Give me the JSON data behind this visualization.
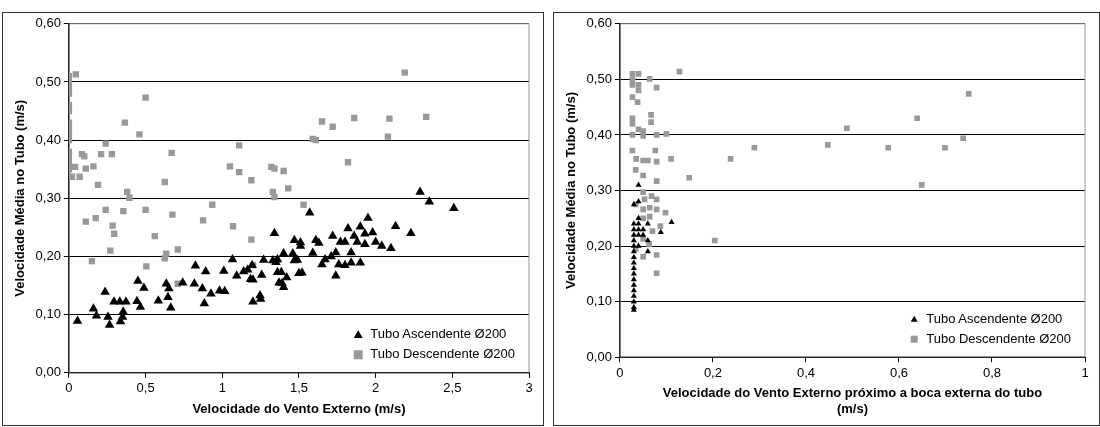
{
  "chart_data": [
    {
      "type": "scatter",
      "xlabel": "Velocidade do Vento Externo (m/s)",
      "ylabel": "Velocidade Média no Tubo (m/s)",
      "xlim": [
        0,
        3
      ],
      "xticks": [
        0,
        {
          "value": 0.5,
          "label": "0,5"
        },
        1,
        {
          "value": 1.5,
          "label": "1,5"
        },
        2,
        {
          "value": 2.5,
          "label": "2,5"
        },
        3
      ],
      "ylim": [
        0,
        0.6
      ],
      "yticks": [
        {
          "value": 0,
          "label": "0,00"
        },
        {
          "value": 0.1,
          "label": "0,10"
        },
        {
          "value": 0.2,
          "label": "0,20"
        },
        {
          "value": 0.3,
          "label": "0,30"
        },
        {
          "value": 0.4,
          "label": "0,40"
        },
        {
          "value": 0.5,
          "label": "0,50"
        },
        {
          "value": 0.6,
          "label": "0,60"
        }
      ],
      "grid": "y",
      "legend": "bottom right",
      "series": [
        {
          "name": "Tubo Ascendente Ø200",
          "color": "#000000",
          "marker": "triangle",
          "x": [
            0.056,
            0.16,
            0.18,
            0.236,
            0.255,
            0.265,
            0.294,
            0.336,
            0.332,
            0.354,
            0.35,
            0.372,
            0.444,
            0.466,
            0.45,
            0.489,
            0.583,
            0.635,
            0.652,
            0.646,
            0.664,
            0.742,
            0.825,
            0.818,
            0.87,
            0.892,
            0.883,
            0.926,
            0.982,
            1.016,
            1.01,
            1.067,
            1.094,
            1.139,
            1.166,
            1.195,
            1.184,
            1.2,
            1.2,
            1.246,
            1.25,
            1.257,
            1.27,
            1.34,
            1.33,
            1.35,
            1.36,
            1.37,
            1.36,
            1.385,
            1.42,
            1.39,
            1.4,
            1.4,
            1.46,
            1.47,
            1.49,
            1.47,
            1.51,
            1.51,
            1.5,
            1.52,
            1.57,
            1.59,
            1.61,
            1.63,
            1.65,
            1.67,
            1.71,
            1.74,
            1.72,
            1.74,
            1.76,
            1.8,
            1.84,
            1.77,
            1.8,
            1.82,
            1.84,
            1.86,
            1.88,
            1.9,
            1.9,
            1.93,
            1.95,
            1.93,
            1.98,
            2.0,
            2.04,
            2.1,
            2.13,
            2.23,
            2.29,
            2.35,
            2.51
          ],
          "values": [
            0.089,
            0.11,
            0.098,
            0.139,
            0.096,
            0.082,
            0.122,
            0.088,
            0.122,
            0.105,
            0.096,
            0.122,
            0.123,
            0.113,
            0.158,
            0.146,
            0.124,
            0.153,
            0.145,
            0.13,
            0.112,
            0.155,
            0.184,
            0.153,
            0.145,
            0.174,
            0.119,
            0.136,
            0.141,
            0.14,
            0.175,
            0.195,
            0.167,
            0.174,
            0.177,
            0.185,
            0.161,
            0.16,
            0.122,
            0.133,
            0.127,
            0.168,
            0.194,
            0.24,
            0.193,
            0.19,
            0.173,
            0.155,
            0.195,
            0.173,
            0.164,
            0.154,
            0.147,
            0.205,
            0.205,
            0.193,
            0.194,
            0.228,
            0.224,
            0.218,
            0.171,
            0.172,
            0.275,
            0.206,
            0.228,
            0.223,
            0.186,
            0.195,
            0.2,
            0.207,
            0.235,
            0.167,
            0.186,
            0.185,
            0.189,
            0.225,
            0.225,
            0.248,
            0.207,
            0.235,
            0.225,
            0.251,
            0.189,
            0.221,
            0.266,
            0.239,
            0.241,
            0.225,
            0.218,
            0.214,
            0.252,
            0.24,
            0.311,
            0.294,
            0.283
          ]
        },
        {
          "name": "Tubo Descendente Ø200",
          "color": "#999999",
          "marker": "square",
          "x": [
            0,
            0,
            0,
            0,
            0,
            0,
            0,
            0,
            0,
            0,
            0,
            0,
            0,
            0,
            0.045,
            0.02,
            0.07,
            0.04,
            0.085,
            0.1,
            0.11,
            0.16,
            0.19,
            0.21,
            0.24,
            0.28,
            0.365,
            0.46,
            0.5,
            0.38,
            0.395,
            0.11,
            0.175,
            0.24,
            0.285,
            0.295,
            0.27,
            0.15,
            0.355,
            0.5,
            0.505,
            0.56,
            0.625,
            0.635,
            0.625,
            0.67,
            0.675,
            0.71,
            0.71,
            0.875,
            0.935,
            1.05,
            1.11,
            1.11,
            1.07,
            1.19,
            1.19,
            1.2,
            1.32,
            1.34,
            1.33,
            1.34,
            1.4,
            1.43,
            1.53,
            1.59,
            1.61,
            1.65,
            1.72,
            1.82,
            1.86,
            2.08,
            2.09,
            2.33,
            2.19
          ],
          "values": [
            0.51,
            0.5,
            0.49,
            0.48,
            0.46,
            0.45,
            0.43,
            0.42,
            0.41,
            0.4,
            0.38,
            0.37,
            0.36,
            0.35,
            0.513,
            0.337,
            0.337,
            0.354,
            0.376,
            0.372,
            0.351,
            0.355,
            0.323,
            0.376,
            0.394,
            0.376,
            0.43,
            0.41,
            0.473,
            0.311,
            0.301,
            0.26,
            0.266,
            0.28,
            0.253,
            0.239,
            0.21,
            0.192,
            0.278,
            0.28,
            0.183,
            0.235,
            0.328,
            0.205,
            0.197,
            0.378,
            0.272,
            0.212,
            0.153,
            0.262,
            0.289,
            0.355,
            0.391,
            0.345,
            0.252,
            0.331,
            0.229,
            0.185,
            0.354,
            0.351,
            0.311,
            0.302,
            0.347,
            0.317,
            0.289,
            0.402,
            0.4,
            0.432,
            0.423,
            0.362,
            0.438,
            0.406,
            0.437,
            0.44,
            0.516
          ]
        }
      ]
    },
    {
      "type": "scatter",
      "xlabel": "Velocidade do Vento Externo próximo a boca externa do tubo (m/s)",
      "ylabel": "Velocidade Média no Tubo (m/s)",
      "xlim": [
        0,
        1
      ],
      "xticks": [
        0,
        {
          "value": 0.2,
          "label": "0,2"
        },
        {
          "value": 0.4,
          "label": "0,4"
        },
        {
          "value": 0.6,
          "label": "0,6"
        },
        {
          "value": 0.8,
          "label": "0,8"
        },
        1
      ],
      "ylim": [
        0,
        0.6
      ],
      "yticks": [
        {
          "value": 0,
          "label": "0,00"
        },
        {
          "value": 0.1,
          "label": "0,10"
        },
        {
          "value": 0.2,
          "label": "0,20"
        },
        {
          "value": 0.3,
          "label": "0,30"
        },
        {
          "value": 0.4,
          "label": "0,40"
        },
        {
          "value": 0.5,
          "label": "0,50"
        },
        {
          "value": 0.6,
          "label": "0,60"
        }
      ],
      "grid": "y",
      "legend": "bottom right",
      "series": [
        {
          "name": "Tubo Ascendente Ø200",
          "color": "#000000",
          "marker": "triangle",
          "x": [
            0.03,
            0.03,
            0.03,
            0.03,
            0.03,
            0.03,
            0.03,
            0.03,
            0.03,
            0.03,
            0.03,
            0.03,
            0.03,
            0.03,
            0.03,
            0.03,
            0.03,
            0.04,
            0.04,
            0.04,
            0.04,
            0.04,
            0.04,
            0.04,
            0.05,
            0.05,
            0.06,
            0.06,
            0.06,
            0.088,
            0.111,
            0.03
          ],
          "values": [
            0.085,
            0.09,
            0.1,
            0.11,
            0.12,
            0.13,
            0.14,
            0.15,
            0.16,
            0.17,
            0.18,
            0.19,
            0.2,
            0.21,
            0.22,
            0.23,
            0.24,
            0.2,
            0.22,
            0.23,
            0.24,
            0.25,
            0.28,
            0.31,
            0.22,
            0.23,
            0.24,
            0.21,
            0.19,
            0.225,
            0.243,
            0.275
          ]
        },
        {
          "name": "Tubo Descendente Ø200",
          "color": "#999999",
          "marker": "square",
          "x": [
            0.027,
            0.027,
            0.027,
            0.04,
            0.04,
            0.04,
            0.027,
            0.038,
            0.027,
            0.027,
            0.04,
            0.027,
            0.05,
            0.05,
            0.064,
            0.079,
            0.067,
            0.067,
            0.079,
            0.1,
            0.027,
            0.035,
            0.05,
            0.06,
            0.079,
            0.11,
            0.034,
            0.05,
            0.076,
            0.079,
            0.149,
            0.05,
            0.053,
            0.068,
            0.079,
            0.034,
            0.05,
            0.064,
            0.079,
            0.098,
            0.05,
            0.064,
            0.07,
            0.087,
            0.034,
            0.05,
            0.05,
            0.063,
            0.079,
            0.079,
            0.204,
            0.128,
            0.238,
            0.289,
            0.447,
            0.488,
            0.577,
            0.639,
            0.649,
            0.699,
            0.738,
            0.75
          ],
          "values": [
            0.51,
            0.5,
            0.49,
            0.51,
            0.49,
            0.48,
            0.468,
            0.459,
            0.43,
            0.42,
            0.41,
            0.4,
            0.398,
            0.407,
            0.501,
            0.485,
            0.436,
            0.423,
            0.4,
            0.402,
            0.372,
            0.357,
            0.354,
            0.354,
            0.352,
            0.357,
            0.337,
            0.327,
            0.372,
            0.317,
            0.323,
            0.297,
            0.284,
            0.29,
            0.284,
            0.275,
            0.266,
            0.269,
            0.266,
            0.26,
            0.25,
            0.253,
            0.227,
            0.236,
            0.195,
            0.213,
            0.181,
            0.203,
            0.184,
            0.151,
            0.21,
            0.514,
            0.357,
            0.377,
            0.382,
            0.412,
            0.377,
            0.43,
            0.31,
            0.377,
            0.394,
            0.474
          ]
        }
      ]
    }
  ]
}
